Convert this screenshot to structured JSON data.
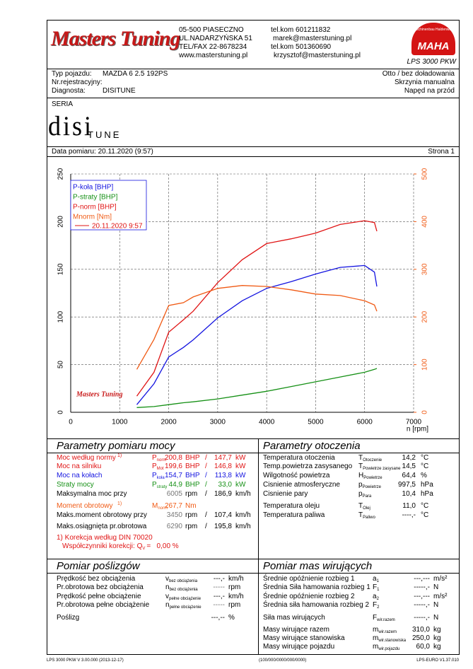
{
  "header": {
    "logo": "Masters Tuning",
    "address": [
      "05-500 PIASECZNO",
      "UL.NADARZYŃSKA 51",
      "TEL/FAX 22-8678234",
      "www.masterstuning.pl"
    ],
    "contacts": [
      "tel.kom 601211832",
      "marek@masterstuning.pl",
      "tel.kom 501360690",
      "krzysztof@masterstuning.pl"
    ],
    "brand_ring": "Maschinenbau Haldenwang",
    "brand": "MAHA",
    "product": "LPS 3000 PKW"
  },
  "vehicle": {
    "rows": [
      {
        "label": "Typ pojazdu:",
        "value": "MAZDA 6 2.5 192PS",
        "right": "Otto / bez doładowania"
      },
      {
        "label": "Nr.rejestracyjny:",
        "right": "Skrzynia manualna"
      },
      {
        "label": "Diagnosta:",
        "value": "DISITUNE",
        "right": "Napęd na przód"
      }
    ]
  },
  "series_label": "SERIA",
  "series_logo": {
    "main": "disi",
    "tail": "TUNE"
  },
  "measurement": {
    "date": "Data pomiaru: 20.11.2020 (9:57)",
    "page": "Strona 1"
  },
  "chart_data": {
    "type": "line",
    "x_label": "n [rpm]",
    "watermark": "Masters Tuning",
    "run_label": "20.11.2020 9:57",
    "x": [
      1350,
      1700,
      2000,
      2300,
      2500,
      3000,
      3500,
      4000,
      4500,
      5000,
      5500,
      6000,
      6200,
      6250
    ],
    "series": [
      {
        "name": "P-koła [BHP]",
        "color": "#1414e0",
        "values": [
          8,
          30,
          58,
          68,
          76,
          99,
          117,
          130,
          137,
          145,
          152,
          154,
          147,
          132
        ]
      },
      {
        "name": "P-straty [BHP]",
        "color": "#159015",
        "values": [
          5,
          6,
          8,
          10,
          11,
          14,
          18,
          22,
          27,
          32,
          37,
          42,
          45,
          46
        ]
      },
      {
        "name": "P-norm [BHP]",
        "color": "#e01414",
        "values": [
          17,
          42,
          84,
          97,
          106,
          136,
          160,
          177,
          182,
          188,
          197,
          201,
          199,
          190
        ]
      },
      {
        "name": "Mnorm [Nm]",
        "color": "#f05a14",
        "axis": "y2",
        "values": [
          90,
          153,
          224,
          230,
          242,
          260,
          266,
          264,
          257,
          248,
          245,
          234,
          225,
          212
        ]
      }
    ],
    "xlim": [
      0,
      7000
    ],
    "xticks": [
      0,
      1000,
      2000,
      3000,
      4000,
      5000,
      6000,
      7000
    ],
    "ylim": [
      0,
      250
    ],
    "yticks": [
      0,
      50,
      100,
      150,
      200,
      250
    ],
    "y2lim": [
      0,
      500
    ],
    "y2ticks": [
      0,
      100,
      200,
      300,
      400,
      500
    ],
    "grid": true
  },
  "power": {
    "title": "Parametry pomiaru mocy",
    "rows": [
      {
        "label": "Moc według normy",
        "note": "1)",
        "symbol": "P",
        "sub": "norm",
        "value": "200,8",
        "unit": "BHP",
        "sep": "/",
        "value2": "147,7",
        "unit2": "kW",
        "color": "#e01414"
      },
      {
        "label": "Moc na silniku",
        "symbol": "P",
        "sub": "Mot",
        "value": "199,6",
        "unit": "BHP",
        "sep": "/",
        "value2": "146,8",
        "unit2": "kW",
        "color": "#e01414"
      },
      {
        "label": "Moc na kołach",
        "symbol": "P",
        "sub": "koła",
        "value": "154,7",
        "unit": "BHP",
        "sep": "/",
        "value2": "113,8",
        "unit2": "kW",
        "color": "#1414e0"
      },
      {
        "label": "Straty mocy",
        "symbol": "P",
        "sub": "straty",
        "value": "44,9",
        "unit": "BHP",
        "sep": "/",
        "value2": "33,0",
        "unit2": "kW",
        "color": "#159015"
      },
      {
        "label": "Maksymalna moc przy",
        "value": "6005",
        "unit": "rpm",
        "sep": "/",
        "value2": "186,9",
        "unit2": "km/h"
      },
      {
        "label": "Moment obrotowy",
        "note": "1)",
        "symbol": "M",
        "sub": "norm",
        "value": "267,7",
        "unit": "Nm",
        "color": "#f05a14"
      },
      {
        "label": "Maks.moment obrotowy przy",
        "value": "3450",
        "unit": "rpm",
        "sep": "/",
        "value2": "107,4",
        "unit2": "km/h"
      },
      {
        "label": "Maks.osiągnięta pr.obrotowa",
        "value": "6290",
        "unit": "rpm",
        "sep": "/",
        "value2": "195,8",
        "unit2": "km/h"
      }
    ],
    "correction": "1) Korekcja według DIN 70020",
    "factor_label": "Współczynniki korekcji: Q",
    "factor_sub": "V",
    "factor_value": "=   0,00 %"
  },
  "ambient": {
    "title": "Parametry otoczenia",
    "rows": [
      {
        "label": "Temperatura otoczenia",
        "symbol": "T",
        "sub": "Otoczenie",
        "value": "14,2",
        "unit": "°C"
      },
      {
        "label": "Temp.powietrza zasysanego",
        "symbol": "T",
        "sub": "Powietrze zasysane",
        "value": "14,5",
        "unit": "°C"
      },
      {
        "label": "Wilgotność powietrza",
        "symbol": "H",
        "sub": "Powietrze",
        "value": "64,4",
        "unit": "%"
      },
      {
        "label": "Cisnienie atmosferyczne",
        "symbol": "p",
        "sub": "Powietrze",
        "value": "997,5",
        "unit": "hPa"
      },
      {
        "label": "Cisnienie pary",
        "symbol": "p",
        "sub": "Para",
        "value": "10,4",
        "unit": "hPa"
      },
      {
        "label": "Temperatura oleju",
        "symbol": "T",
        "sub": "Olej",
        "value": "11,0",
        "unit": "°C"
      },
      {
        "label": "Temperatura paliwa",
        "symbol": "T",
        "sub": "Paliwo",
        "value": "----,-",
        "unit": "°C"
      }
    ]
  },
  "slip": {
    "title": "Pomiar poślizgów",
    "rows": [
      {
        "label": "Prędkość bez obciążenia",
        "symbol": "v",
        "sub": "bez obciążenia",
        "value": "---,-",
        "unit": "km/h"
      },
      {
        "label": "Pr.obrotowa bez obciążenia",
        "symbol": "n",
        "sub": "bez obciążenia",
        "value": "-----",
        "unit": "rpm"
      },
      {
        "label": "Prędkość pełne obciążenie",
        "symbol": "v",
        "sub": "pełne obciążenie",
        "value": "---,-",
        "unit": "km/h"
      },
      {
        "label": "Pr.obrotowa pełne obciążenie",
        "symbol": "n",
        "sub": "pełne obciążenie",
        "value": "-----",
        "unit": "rpm"
      },
      {
        "label": "Poślizg",
        "value": "---,--",
        "unit": "%"
      }
    ]
  },
  "masses": {
    "title": "Pomiar mas wirujących",
    "rows": [
      {
        "label": "Średnie opóźnienie rozbieg 1",
        "symbol": "a",
        "sub": "1",
        "value": "---,---",
        "unit": "m/s²"
      },
      {
        "label": "Średnia Siła hamowania rozbieg 1",
        "symbol": "F",
        "sub": "1",
        "value": "-----,-",
        "unit": "N"
      },
      {
        "label": "Średnie opóźnienie rozbieg 2",
        "symbol": "a",
        "sub": "2",
        "value": "---,---",
        "unit": "m/s²"
      },
      {
        "label": "Średnia siła hamowania rozbieg 2",
        "symbol": "F",
        "sub": "2",
        "value": "-----,-",
        "unit": "N"
      },
      {
        "label": "Siła mas wirujących",
        "symbol": "F",
        "sub": "wir.razem",
        "value": "-----,-",
        "unit": "N"
      },
      {
        "label": "Masy wirujące razem",
        "symbol": "m",
        "sub": "wir.razem",
        "value": "310,0",
        "unit": "kg"
      },
      {
        "label": "Masy wirujące stanowiska",
        "symbol": "m",
        "sub": "wir.stanowiska",
        "value": "250,0",
        "unit": "kg"
      },
      {
        "label": "Masy wirujące pojazdu",
        "symbol": "m",
        "sub": "wir.pojazdu",
        "value": "60,0",
        "unit": "kg"
      }
    ]
  },
  "footer": [
    "LPS 3000 PKW V 3.00.000 (2013-12-17)",
    "(100/000/0000/000/0000)",
    "LPS-EURO V1.37.010"
  ]
}
